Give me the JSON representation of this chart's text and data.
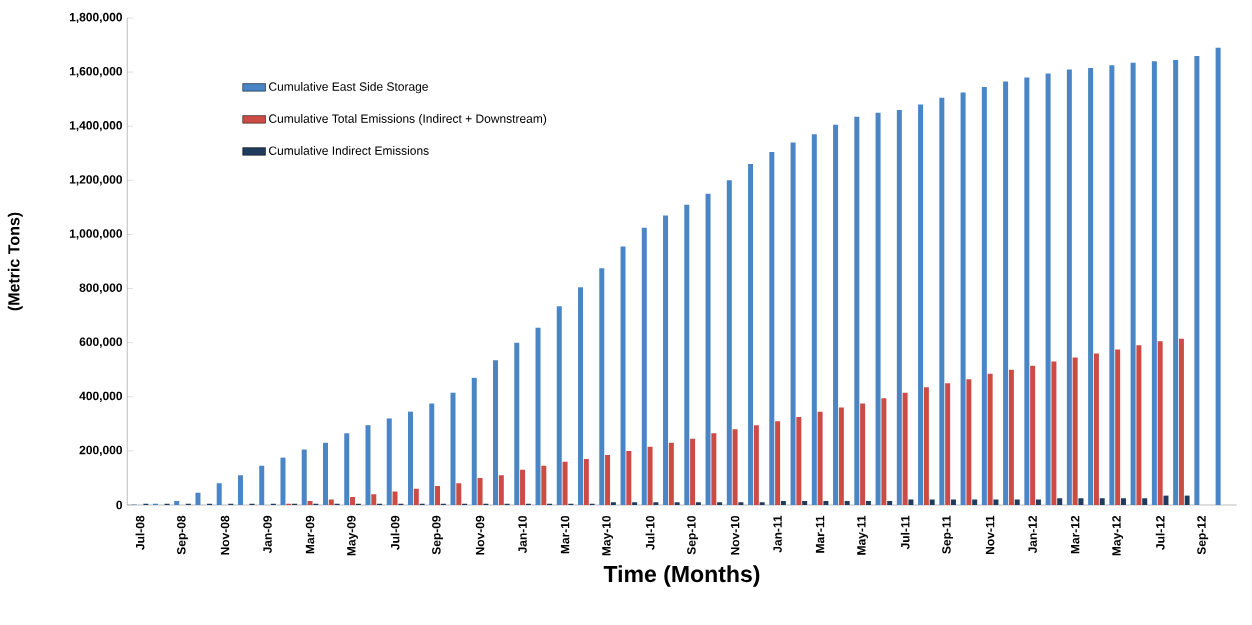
{
  "chart_data": {
    "type": "bar",
    "xlabel": "Time (Months)",
    "ylabel": "(Metric Tons)",
    "categories": [
      "Jul-08",
      null,
      "Sep-08",
      null,
      "Nov-08",
      null,
      "Jan-09",
      null,
      "Mar-09",
      null,
      "May-09",
      null,
      "Jul-09",
      null,
      "Sep-09",
      null,
      "Nov-09",
      null,
      "Jan-10",
      null,
      "Mar-10",
      null,
      "May-10",
      null,
      "Jul-10",
      null,
      "Sep-10",
      null,
      "Nov-10",
      null,
      "Jan-11",
      null,
      "Mar-11",
      null,
      "May-11",
      null,
      "Jul-11",
      null,
      "Sep-11",
      null,
      "Nov-11",
      null,
      "Jan-12",
      null,
      "Mar-12",
      null,
      "May-12",
      null,
      "Jul-12",
      null,
      "Sep-12",
      null
    ],
    "series": [
      {
        "name": "Cumulative East Side Storage",
        "color": "#4a86c5",
        "values": [
          2000,
          5000,
          15000,
          45000,
          80000,
          110000,
          145000,
          175000,
          205000,
          230000,
          265000,
          295000,
          320000,
          345000,
          375000,
          415000,
          470000,
          535000,
          600000,
          655000,
          735000,
          805000,
          875000,
          955000,
          1025000,
          1070000,
          1110000,
          1150000,
          1200000,
          1260000,
          1305000,
          1340000,
          1370000,
          1405000,
          1435000,
          1450000,
          1460000,
          1480000,
          1505000,
          1525000,
          1545000,
          1565000,
          1580000,
          1595000,
          1610000,
          1615000,
          1625000,
          1635000,
          1640000,
          1645000,
          1660000,
          1690000
        ]
      },
      {
        "name": "Cumulative Total Emissions (Indirect + Downstream)",
        "color": "#cc4c45",
        "values": [
          0,
          0,
          0,
          0,
          0,
          0,
          0,
          5000,
          15000,
          20000,
          30000,
          40000,
          50000,
          60000,
          70000,
          80000,
          100000,
          110000,
          130000,
          145000,
          160000,
          170000,
          185000,
          200000,
          215000,
          230000,
          245000,
          265000,
          280000,
          295000,
          310000,
          325000,
          345000,
          360000,
          375000,
          395000,
          415000,
          435000,
          450000,
          465000,
          485000,
          500000,
          515000,
          530000,
          545000,
          560000,
          575000,
          590000,
          605000,
          615000,
          null,
          null
        ]
      },
      {
        "name": "Cumulative Indirect Emissions",
        "color": "#1f3c5f",
        "values": [
          5000,
          5000,
          5000,
          5000,
          5000,
          5000,
          5000,
          5000,
          5000,
          5000,
          5000,
          5000,
          5000,
          5000,
          5000,
          5000,
          5000,
          5000,
          5000,
          5000,
          5000,
          5000,
          10000,
          10000,
          10000,
          10000,
          10000,
          10000,
          10000,
          10000,
          15000,
          15000,
          15000,
          15000,
          15000,
          15000,
          20000,
          20000,
          20000,
          20000,
          20000,
          20000,
          20000,
          25000,
          25000,
          25000,
          25000,
          25000,
          35000,
          35000,
          null,
          null
        ]
      }
    ],
    "ylim": [
      0,
      1800000
    ],
    "yticks": [
      {
        "value": 0,
        "label": "0"
      },
      {
        "value": 200000,
        "label": "200,000"
      },
      {
        "value": 400000,
        "label": "400,000"
      },
      {
        "value": 600000,
        "label": "600,000"
      },
      {
        "value": 800000,
        "label": "800,000"
      },
      {
        "value": 1000000,
        "label": "1,000,000"
      },
      {
        "value": 1200000,
        "label": "1,200,000"
      },
      {
        "value": 1400000,
        "label": "1,400,000"
      },
      {
        "value": 1600000,
        "label": "1,600,000"
      },
      {
        "value": 1800000,
        "label": "1,800,000"
      }
    ],
    "legend": "top left",
    "grid": false
  }
}
